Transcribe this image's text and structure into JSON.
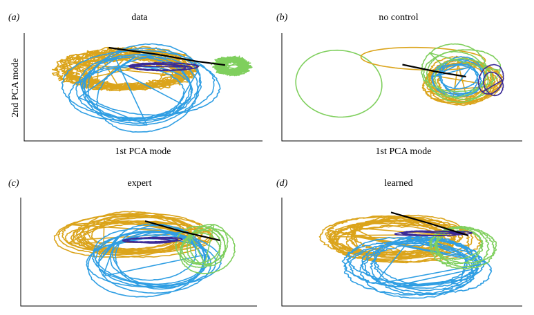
{
  "figure": {
    "panels": [
      {
        "tag": "(a)",
        "title": "data",
        "xlabel": "1st PCA mode",
        "ylabel": "2nd PCA mode"
      },
      {
        "tag": "(b)",
        "title": "no control",
        "xlabel": "1st PCA mode",
        "ylabel": ""
      },
      {
        "tag": "(c)",
        "title": "expert",
        "xlabel": "",
        "ylabel": ""
      },
      {
        "tag": "(d)",
        "title": "learned",
        "xlabel": "",
        "ylabel": ""
      }
    ]
  },
  "colors": {
    "orange": "#dba41b",
    "blue": "#2f9ee3",
    "green": "#7fcf5d",
    "purple": "#3b2a96",
    "black": "#000000"
  },
  "chart_data": [
    {
      "type": "line",
      "title": "data",
      "xlabel": "1st PCA mode",
      "ylabel": "2nd PCA mode",
      "xlim": [
        -1,
        1
      ],
      "ylim": [
        -1,
        1
      ],
      "grid": false,
      "ticks": "none",
      "traj": [
        {
          "color": "orange",
          "cx": -0.18,
          "cy": 0.32,
          "rx": 0.55,
          "ry": 0.4,
          "loops": 16,
          "noise": 0.07,
          "seed": 3
        },
        {
          "color": "blue",
          "cx": -0.05,
          "cy": -0.05,
          "rx": 0.62,
          "ry": 0.72,
          "loops": 9,
          "noise": 0.015,
          "seed": 7
        },
        {
          "color": "green",
          "cx": 0.78,
          "cy": 0.42,
          "rx": 0.12,
          "ry": 0.15,
          "loops": 12,
          "noise": 0.07,
          "seed": 11
        },
        {
          "color": "purple",
          "cx": 0.12,
          "cy": 0.4,
          "rx": 0.32,
          "ry": 0.07,
          "loops": 4,
          "noise": 0.01,
          "seed": 13
        },
        {
          "color": "black",
          "x": [
            -0.35,
            0.1,
            0.45,
            0.72
          ],
          "y": [
            0.8,
            0.66,
            0.52,
            0.44
          ]
        }
      ]
    },
    {
      "type": "line",
      "title": "no control",
      "xlabel": "1st PCA mode",
      "ylabel": "",
      "xlim": [
        -1,
        1
      ],
      "ylim": [
        -1,
        1
      ],
      "grid": false,
      "ticks": "none",
      "traj": [
        {
          "color": "green",
          "cx": -0.55,
          "cy": 0.0,
          "rx": 0.45,
          "ry": 0.78,
          "loops": 1,
          "noise": 0.0,
          "seed": 1
        },
        {
          "color": "orange",
          "cx": 0.25,
          "cy": 0.55,
          "rx": 0.65,
          "ry": 0.25,
          "loops": 1,
          "noise": 0.0,
          "seed": 2
        },
        {
          "color": "orange",
          "cx": 0.5,
          "cy": 0.12,
          "rx": 0.3,
          "ry": 0.42,
          "loops": 10,
          "noise": 0.02,
          "seed": 5
        },
        {
          "color": "blue",
          "cx": 0.5,
          "cy": 0.15,
          "rx": 0.2,
          "ry": 0.35,
          "loops": 5,
          "noise": 0.01,
          "seed": 8
        },
        {
          "color": "green",
          "cx": 0.48,
          "cy": 0.25,
          "rx": 0.3,
          "ry": 0.55,
          "loops": 4,
          "noise": 0.01,
          "seed": 9
        },
        {
          "color": "purple",
          "cx": 0.78,
          "cy": 0.1,
          "rx": 0.1,
          "ry": 0.3,
          "loops": 2,
          "noise": 0.005,
          "seed": 10
        },
        {
          "color": "black",
          "x": [
            0.0,
            0.3,
            0.55
          ],
          "y": [
            0.45,
            0.3,
            0.2
          ]
        }
      ]
    },
    {
      "type": "line",
      "title": "expert",
      "xlabel": "",
      "ylabel": "",
      "xlim": [
        -1,
        1
      ],
      "ylim": [
        -1,
        1
      ],
      "grid": false,
      "ticks": "none",
      "traj": [
        {
          "color": "orange",
          "cx": -0.1,
          "cy": 0.3,
          "rx": 0.62,
          "ry": 0.38,
          "loops": 14,
          "noise": 0.015,
          "seed": 4
        },
        {
          "color": "blue",
          "cx": 0.05,
          "cy": -0.2,
          "rx": 0.52,
          "ry": 0.6,
          "loops": 9,
          "noise": 0.01,
          "seed": 6
        },
        {
          "color": "green",
          "cx": 0.55,
          "cy": 0.05,
          "rx": 0.22,
          "ry": 0.4,
          "loops": 6,
          "noise": 0.01,
          "seed": 12
        },
        {
          "color": "purple",
          "cx": 0.05,
          "cy": 0.2,
          "rx": 0.25,
          "ry": 0.05,
          "loops": 3,
          "noise": 0.005,
          "seed": 14
        },
        {
          "color": "black",
          "x": [
            0.0,
            0.35,
            0.7
          ],
          "y": [
            0.6,
            0.38,
            0.2
          ]
        }
      ]
    },
    {
      "type": "line",
      "title": "learned",
      "xlabel": "",
      "ylabel": "",
      "xlim": [
        -1,
        1
      ],
      "ylim": [
        -1,
        1
      ],
      "grid": false,
      "ticks": "none",
      "traj": [
        {
          "color": "orange",
          "cx": -0.1,
          "cy": 0.25,
          "rx": 0.6,
          "ry": 0.4,
          "loops": 16,
          "noise": 0.03,
          "seed": 15
        },
        {
          "color": "blue",
          "cx": 0.1,
          "cy": -0.3,
          "rx": 0.58,
          "ry": 0.55,
          "loops": 10,
          "noise": 0.03,
          "seed": 16
        },
        {
          "color": "green",
          "cx": 0.5,
          "cy": 0.1,
          "rx": 0.28,
          "ry": 0.38,
          "loops": 5,
          "noise": 0.02,
          "seed": 17
        },
        {
          "color": "purple",
          "cx": 0.25,
          "cy": 0.35,
          "rx": 0.3,
          "ry": 0.04,
          "loops": 3,
          "noise": 0.005,
          "seed": 18
        },
        {
          "color": "black",
          "x": [
            -0.15,
            0.2,
            0.55
          ],
          "y": [
            0.78,
            0.55,
            0.3
          ]
        }
      ]
    }
  ]
}
